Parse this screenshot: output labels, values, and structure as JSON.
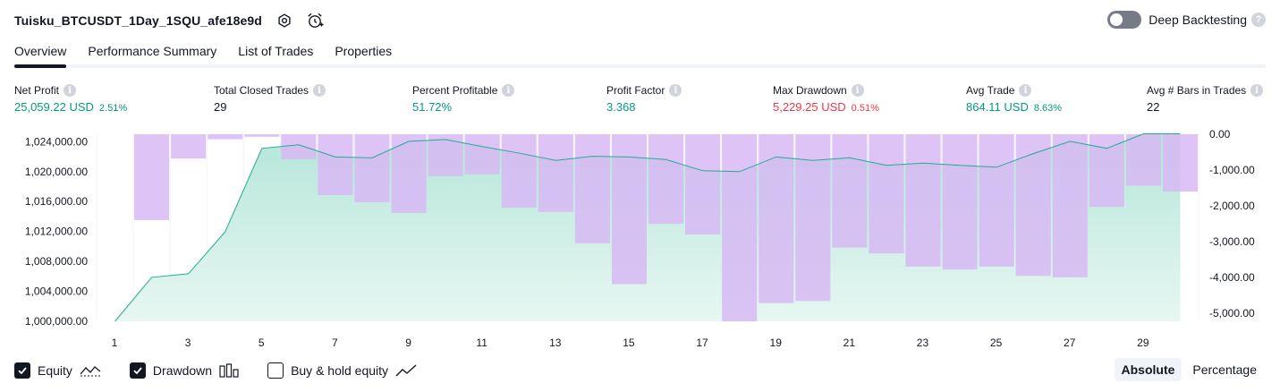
{
  "header": {
    "strategy_name": "Tuisku_BTCUSDT_1Day_1SQU_afe18e9d",
    "deep_backtesting_label": "Deep Backtesting",
    "deep_backtesting_enabled": false,
    "help_glyph": "?"
  },
  "tabs": [
    {
      "label": "Overview",
      "active": true
    },
    {
      "label": "Performance Summary",
      "active": false
    },
    {
      "label": "List of Trades",
      "active": false
    },
    {
      "label": "Properties",
      "active": false
    }
  ],
  "metrics": {
    "info_glyph": "i",
    "net_profit": {
      "label": "Net Profit",
      "value": "25,059.22 USD",
      "pct": "2.51%"
    },
    "total_closed_trades": {
      "label": "Total Closed Trades",
      "value": "29"
    },
    "percent_profitable": {
      "label": "Percent Profitable",
      "value": "51.72%"
    },
    "profit_factor": {
      "label": "Profit Factor",
      "value": "3.368"
    },
    "max_drawdown": {
      "label": "Max Drawdown",
      "value": "5,229.25 USD",
      "pct": "0.51%"
    },
    "avg_trade": {
      "label": "Avg Trade",
      "value": "864.11 USD",
      "pct": "8.63%"
    },
    "avg_bars": {
      "label": "Avg # Bars in Trades",
      "value": "22"
    }
  },
  "colors": {
    "positive": "#089981",
    "negative": "#f23645",
    "equity_line": "#22ab94",
    "equity_fill": "#cdeee6",
    "drawdown_bar": "#d7b8f5"
  },
  "chart_data": {
    "type": "area",
    "x": [
      1,
      2,
      3,
      4,
      5,
      6,
      7,
      8,
      9,
      10,
      11,
      12,
      13,
      14,
      15,
      16,
      17,
      18,
      19,
      20,
      21,
      22,
      23,
      24,
      25,
      26,
      27,
      28,
      29,
      30
    ],
    "x_ticks": [
      "1",
      "3",
      "5",
      "7",
      "9",
      "11",
      "13",
      "15",
      "17",
      "19",
      "21",
      "23",
      "25",
      "27",
      "29"
    ],
    "series": [
      {
        "name": "Equity",
        "axis": "left",
        "values": [
          1000000,
          1005870,
          1006350,
          1011970,
          1023110,
          1023590,
          1021970,
          1021850,
          1024060,
          1024300,
          1023350,
          1022480,
          1021500,
          1022060,
          1021970,
          1021620,
          1020120,
          1020000,
          1021970,
          1021500,
          1021860,
          1020850,
          1021140,
          1020850,
          1020600,
          1022410,
          1024060,
          1023110,
          1025060,
          1025060
        ]
      },
      {
        "name": "Drawdown",
        "axis": "right",
        "type": "bar",
        "values": [
          0,
          -2400,
          -680,
          -140,
          -70,
          -700,
          -1700,
          -1900,
          -2200,
          -1170,
          -1120,
          -2050,
          -2170,
          -3050,
          -4190,
          -2500,
          -2800,
          -5229,
          -4720,
          -4660,
          -3170,
          -3330,
          -3700,
          -3780,
          -3700,
          -3960,
          -4000,
          -2030,
          -1440,
          -1600
        ]
      }
    ],
    "left_axis": {
      "ticks": [
        "1,024,000.00",
        "1,020,000.00",
        "1,016,000.00",
        "1,012,000.00",
        "1,008,000.00",
        "1,004,000.00",
        "1,000,000.00"
      ],
      "range": [
        1000000,
        1025000
      ]
    },
    "right_axis": {
      "ticks": [
        "0.00",
        "-1,000.00",
        "-2,000.00",
        "-3,000.00",
        "-4,000.00",
        "-5,000.00"
      ],
      "range": [
        -5229,
        0
      ]
    },
    "grid": true
  },
  "legend": {
    "equity": {
      "label": "Equity",
      "checked": true
    },
    "drawdown": {
      "label": "Drawdown",
      "checked": true
    },
    "buy_hold": {
      "label": "Buy & hold equity",
      "checked": false
    }
  },
  "scale": {
    "absolute_label": "Absolute",
    "percentage_label": "Percentage",
    "selected": "Absolute"
  }
}
